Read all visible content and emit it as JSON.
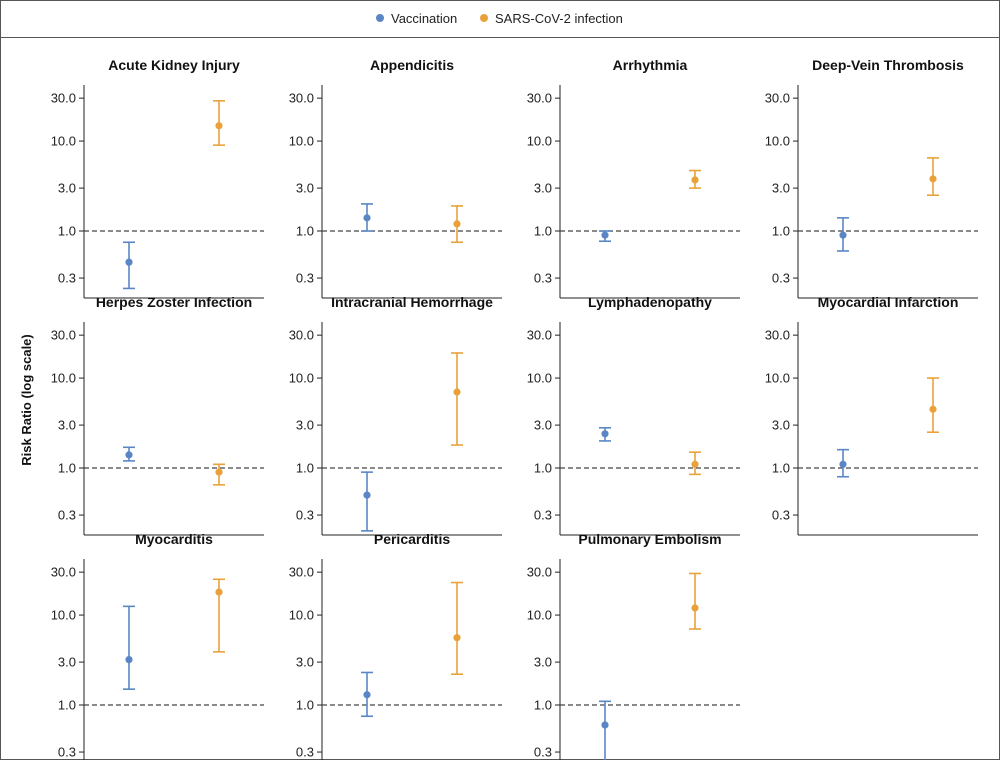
{
  "legend": {
    "vaccination": "Vaccination",
    "infection": "SARS-CoV-2 infection"
  },
  "colors": {
    "vaccination": "#5b86c5",
    "infection": "#e9a23b",
    "reference_line": "#444444",
    "axis": "#222222"
  },
  "y_axis": {
    "label": "Risk Ratio (log scale)",
    "scale": "log",
    "ticks": [
      "30.0",
      "10.0",
      "3.0",
      "1.0",
      "0.3"
    ]
  },
  "chart_data": [
    {
      "type": "scatter",
      "title": "Acute Kidney Injury",
      "yscale": "log",
      "ylim": [
        0.18,
        42
      ],
      "reference_value": 1.0,
      "series": [
        {
          "name": "Vaccination",
          "value": 0.45,
          "ci": [
            0.23,
            0.75
          ]
        },
        {
          "name": "SARS-CoV-2 infection",
          "value": 14.8,
          "ci": [
            9.0,
            28.0
          ]
        }
      ]
    },
    {
      "type": "scatter",
      "title": "Appendicitis",
      "yscale": "log",
      "ylim": [
        0.18,
        42
      ],
      "reference_value": 1.0,
      "series": [
        {
          "name": "Vaccination",
          "value": 1.4,
          "ci": [
            1.0,
            2.0
          ]
        },
        {
          "name": "SARS-CoV-2 infection",
          "value": 1.2,
          "ci": [
            0.75,
            1.9
          ]
        }
      ]
    },
    {
      "type": "scatter",
      "title": "Arrhythmia",
      "yscale": "log",
      "ylim": [
        0.18,
        42
      ],
      "reference_value": 1.0,
      "series": [
        {
          "name": "Vaccination",
          "value": 0.9,
          "ci": [
            0.77,
            1.0
          ]
        },
        {
          "name": "SARS-CoV-2 infection",
          "value": 3.7,
          "ci": [
            3.0,
            4.7
          ]
        }
      ]
    },
    {
      "type": "scatter",
      "title": "Deep-Vein Thrombosis",
      "yscale": "log",
      "ylim": [
        0.18,
        42
      ],
      "reference_value": 1.0,
      "series": [
        {
          "name": "Vaccination",
          "value": 0.9,
          "ci": [
            0.6,
            1.4
          ]
        },
        {
          "name": "SARS-CoV-2 infection",
          "value": 3.8,
          "ci": [
            2.5,
            6.5
          ]
        }
      ]
    },
    {
      "type": "scatter",
      "title": "Herpes Zoster Infection",
      "yscale": "log",
      "ylim": [
        0.18,
        42
      ],
      "reference_value": 1.0,
      "series": [
        {
          "name": "Vaccination",
          "value": 1.4,
          "ci": [
            1.2,
            1.7
          ]
        },
        {
          "name": "SARS-CoV-2 infection",
          "value": 0.9,
          "ci": [
            0.65,
            1.1
          ]
        }
      ]
    },
    {
      "type": "scatter",
      "title": "Intracranial Hemorrhage",
      "yscale": "log",
      "ylim": [
        0.18,
        42
      ],
      "reference_value": 1.0,
      "series": [
        {
          "name": "Vaccination",
          "value": 0.5,
          "ci": [
            0.2,
            0.9
          ]
        },
        {
          "name": "SARS-CoV-2 infection",
          "value": 7.0,
          "ci": [
            1.8,
            19.0
          ]
        }
      ]
    },
    {
      "type": "scatter",
      "title": "Lymphadenopathy",
      "yscale": "log",
      "ylim": [
        0.18,
        42
      ],
      "reference_value": 1.0,
      "series": [
        {
          "name": "Vaccination",
          "value": 2.4,
          "ci": [
            2.0,
            2.8
          ]
        },
        {
          "name": "SARS-CoV-2 infection",
          "value": 1.1,
          "ci": [
            0.85,
            1.5
          ]
        }
      ]
    },
    {
      "type": "scatter",
      "title": "Myocardial Infarction",
      "yscale": "log",
      "ylim": [
        0.18,
        42
      ],
      "reference_value": 1.0,
      "series": [
        {
          "name": "Vaccination",
          "value": 1.1,
          "ci": [
            0.8,
            1.6
          ]
        },
        {
          "name": "SARS-CoV-2 infection",
          "value": 4.5,
          "ci": [
            2.5,
            10.0
          ]
        }
      ]
    },
    {
      "type": "scatter",
      "title": "Myocarditis",
      "yscale": "log",
      "ylim": [
        0.18,
        42
      ],
      "reference_value": 1.0,
      "series": [
        {
          "name": "Vaccination",
          "value": 3.2,
          "ci": [
            1.5,
            12.5
          ]
        },
        {
          "name": "SARS-CoV-2 infection",
          "value": 18.0,
          "ci": [
            3.9,
            25.0
          ]
        }
      ]
    },
    {
      "type": "scatter",
      "title": "Pericarditis",
      "yscale": "log",
      "ylim": [
        0.18,
        42
      ],
      "reference_value": 1.0,
      "series": [
        {
          "name": "Vaccination",
          "value": 1.3,
          "ci": [
            0.75,
            2.3
          ]
        },
        {
          "name": "SARS-CoV-2 infection",
          "value": 5.6,
          "ci": [
            2.2,
            23.0
          ]
        }
      ]
    },
    {
      "type": "scatter",
      "title": "Pulmonary Embolism",
      "yscale": "log",
      "ylim": [
        0.18,
        42
      ],
      "reference_value": 1.0,
      "series": [
        {
          "name": "Vaccination",
          "value": 0.6,
          "ci": [
            0.22,
            1.1
          ]
        },
        {
          "name": "SARS-CoV-2 infection",
          "value": 12.0,
          "ci": [
            7.0,
            29.0
          ]
        }
      ]
    }
  ]
}
